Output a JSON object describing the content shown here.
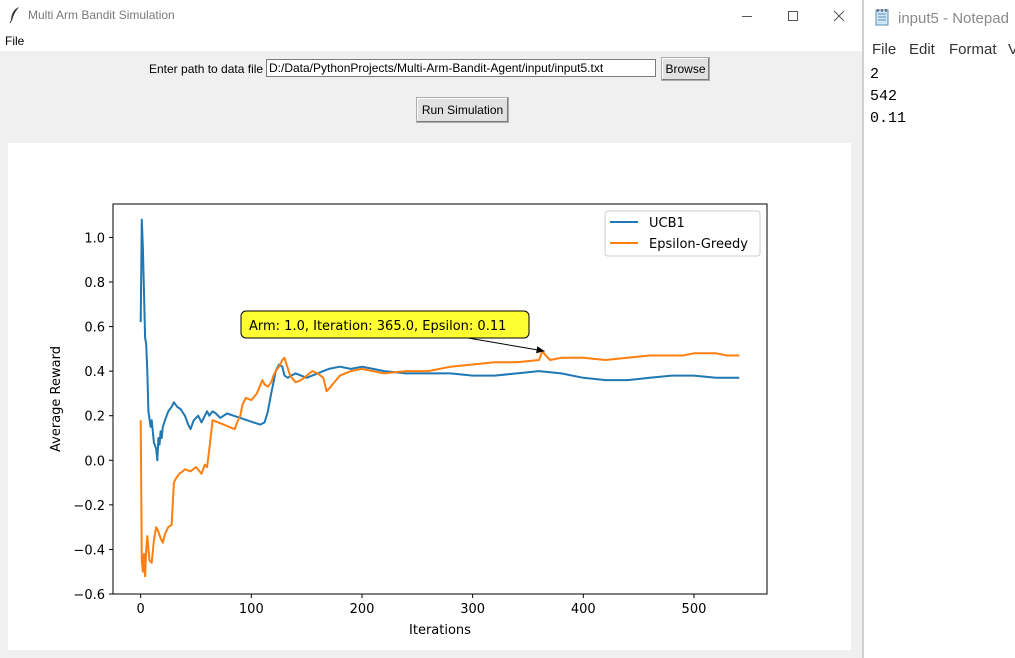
{
  "window": {
    "title": "Multi Arm Bandit Simulation",
    "menu": [
      "File"
    ]
  },
  "form": {
    "path_label": "Enter path to data file",
    "path_value": "D:/Data/PythonProjects/Multi-Arm-Bandit-Agent/input/input5.txt",
    "browse_label": "Browse",
    "run_label": "Run Simulation"
  },
  "chart_data": {
    "type": "line",
    "xlabel": "Iterations",
    "ylabel": "Average Reward",
    "xlim": [
      -25,
      566
    ],
    "ylim": [
      -0.6,
      1.15
    ],
    "xticks": [
      0,
      100,
      200,
      300,
      400,
      500
    ],
    "xtick_labels": [
      "0",
      "100",
      "200",
      "300",
      "400",
      "500"
    ],
    "yticks": [
      -0.6,
      -0.4,
      -0.2,
      0.0,
      0.2,
      0.4,
      0.6,
      0.8,
      1.0
    ],
    "ytick_labels": [
      "−0.6",
      "−0.4",
      "−0.2",
      "0.0",
      "0.2",
      "0.4",
      "0.6",
      "0.8",
      "1.0"
    ],
    "legend_position": "top-right",
    "grid": false,
    "series": [
      {
        "name": "UCB1",
        "color": "#1f77b4",
        "x": [
          0,
          1,
          2,
          3,
          4,
          5,
          6,
          7,
          9,
          10,
          12,
          14,
          15,
          16,
          17,
          18,
          19,
          20,
          22,
          25,
          28,
          30,
          33,
          36,
          40,
          43,
          45,
          48,
          52,
          55,
          58,
          60,
          62,
          65,
          68,
          72,
          78,
          84,
          90,
          96,
          102,
          108,
          112,
          115,
          118,
          120,
          122,
          125,
          128,
          130,
          133,
          136,
          140,
          145,
          150,
          155,
          160,
          165,
          170,
          180,
          190,
          200,
          210,
          220,
          240,
          260,
          280,
          300,
          320,
          340,
          360,
          380,
          400,
          420,
          440,
          460,
          480,
          500,
          520,
          541
        ],
        "y": [
          0.62,
          1.08,
          0.95,
          0.75,
          0.55,
          0.52,
          0.4,
          0.22,
          0.15,
          0.18,
          0.08,
          0.05,
          0.0,
          0.1,
          0.07,
          0.13,
          0.1,
          0.15,
          0.18,
          0.22,
          0.24,
          0.26,
          0.24,
          0.23,
          0.2,
          0.16,
          0.14,
          0.18,
          0.2,
          0.17,
          0.2,
          0.22,
          0.2,
          0.22,
          0.21,
          0.19,
          0.21,
          0.2,
          0.19,
          0.18,
          0.17,
          0.16,
          0.17,
          0.22,
          0.3,
          0.35,
          0.4,
          0.43,
          0.42,
          0.38,
          0.37,
          0.38,
          0.39,
          0.38,
          0.37,
          0.38,
          0.39,
          0.4,
          0.41,
          0.42,
          0.41,
          0.42,
          0.41,
          0.4,
          0.39,
          0.39,
          0.39,
          0.38,
          0.38,
          0.39,
          0.4,
          0.39,
          0.37,
          0.36,
          0.36,
          0.37,
          0.38,
          0.38,
          0.37,
          0.37
        ]
      },
      {
        "name": "Epsilon-Greedy",
        "color": "#ff7f0e",
        "x": [
          0,
          1,
          2,
          3,
          4,
          5,
          6,
          8,
          10,
          12,
          14,
          16,
          18,
          20,
          22,
          25,
          28,
          30,
          32,
          35,
          38,
          40,
          45,
          50,
          55,
          58,
          60,
          62,
          65,
          70,
          75,
          80,
          85,
          88,
          90,
          92,
          95,
          100,
          105,
          110,
          112,
          115,
          118,
          120,
          122,
          125,
          128,
          130,
          135,
          140,
          145,
          150,
          155,
          160,
          165,
          168,
          170,
          175,
          180,
          190,
          200,
          220,
          240,
          260,
          280,
          300,
          320,
          340,
          360,
          363,
          366,
          370,
          380,
          400,
          420,
          440,
          460,
          480,
          490,
          500,
          510,
          520,
          530,
          541
        ],
        "y": [
          0.18,
          -0.45,
          -0.5,
          -0.42,
          -0.52,
          -0.4,
          -0.34,
          -0.45,
          -0.46,
          -0.36,
          -0.3,
          -0.32,
          -0.35,
          -0.37,
          -0.33,
          -0.3,
          -0.29,
          -0.1,
          -0.08,
          -0.06,
          -0.05,
          -0.04,
          -0.05,
          -0.03,
          -0.06,
          -0.02,
          -0.03,
          0.05,
          0.18,
          0.17,
          0.16,
          0.15,
          0.14,
          0.18,
          0.2,
          0.25,
          0.28,
          0.27,
          0.3,
          0.36,
          0.34,
          0.33,
          0.35,
          0.38,
          0.4,
          0.42,
          0.45,
          0.46,
          0.38,
          0.35,
          0.36,
          0.38,
          0.4,
          0.39,
          0.37,
          0.31,
          0.32,
          0.35,
          0.38,
          0.4,
          0.41,
          0.39,
          0.4,
          0.4,
          0.42,
          0.43,
          0.44,
          0.44,
          0.45,
          0.49,
          0.47,
          0.45,
          0.46,
          0.46,
          0.45,
          0.46,
          0.47,
          0.47,
          0.47,
          0.48,
          0.48,
          0.48,
          0.47,
          0.47
        ]
      }
    ],
    "annotation": {
      "text": "Arm: 1.0, Iteration: 365.0, Epsilon: 0.11",
      "target": [
        365,
        0.49
      ],
      "bg": "#ffff33"
    }
  },
  "notepad": {
    "title": "input5 - Notepad",
    "menu": [
      "File",
      "Edit",
      "Format",
      "V"
    ],
    "lines": [
      "2",
      "542",
      "0.11"
    ]
  }
}
